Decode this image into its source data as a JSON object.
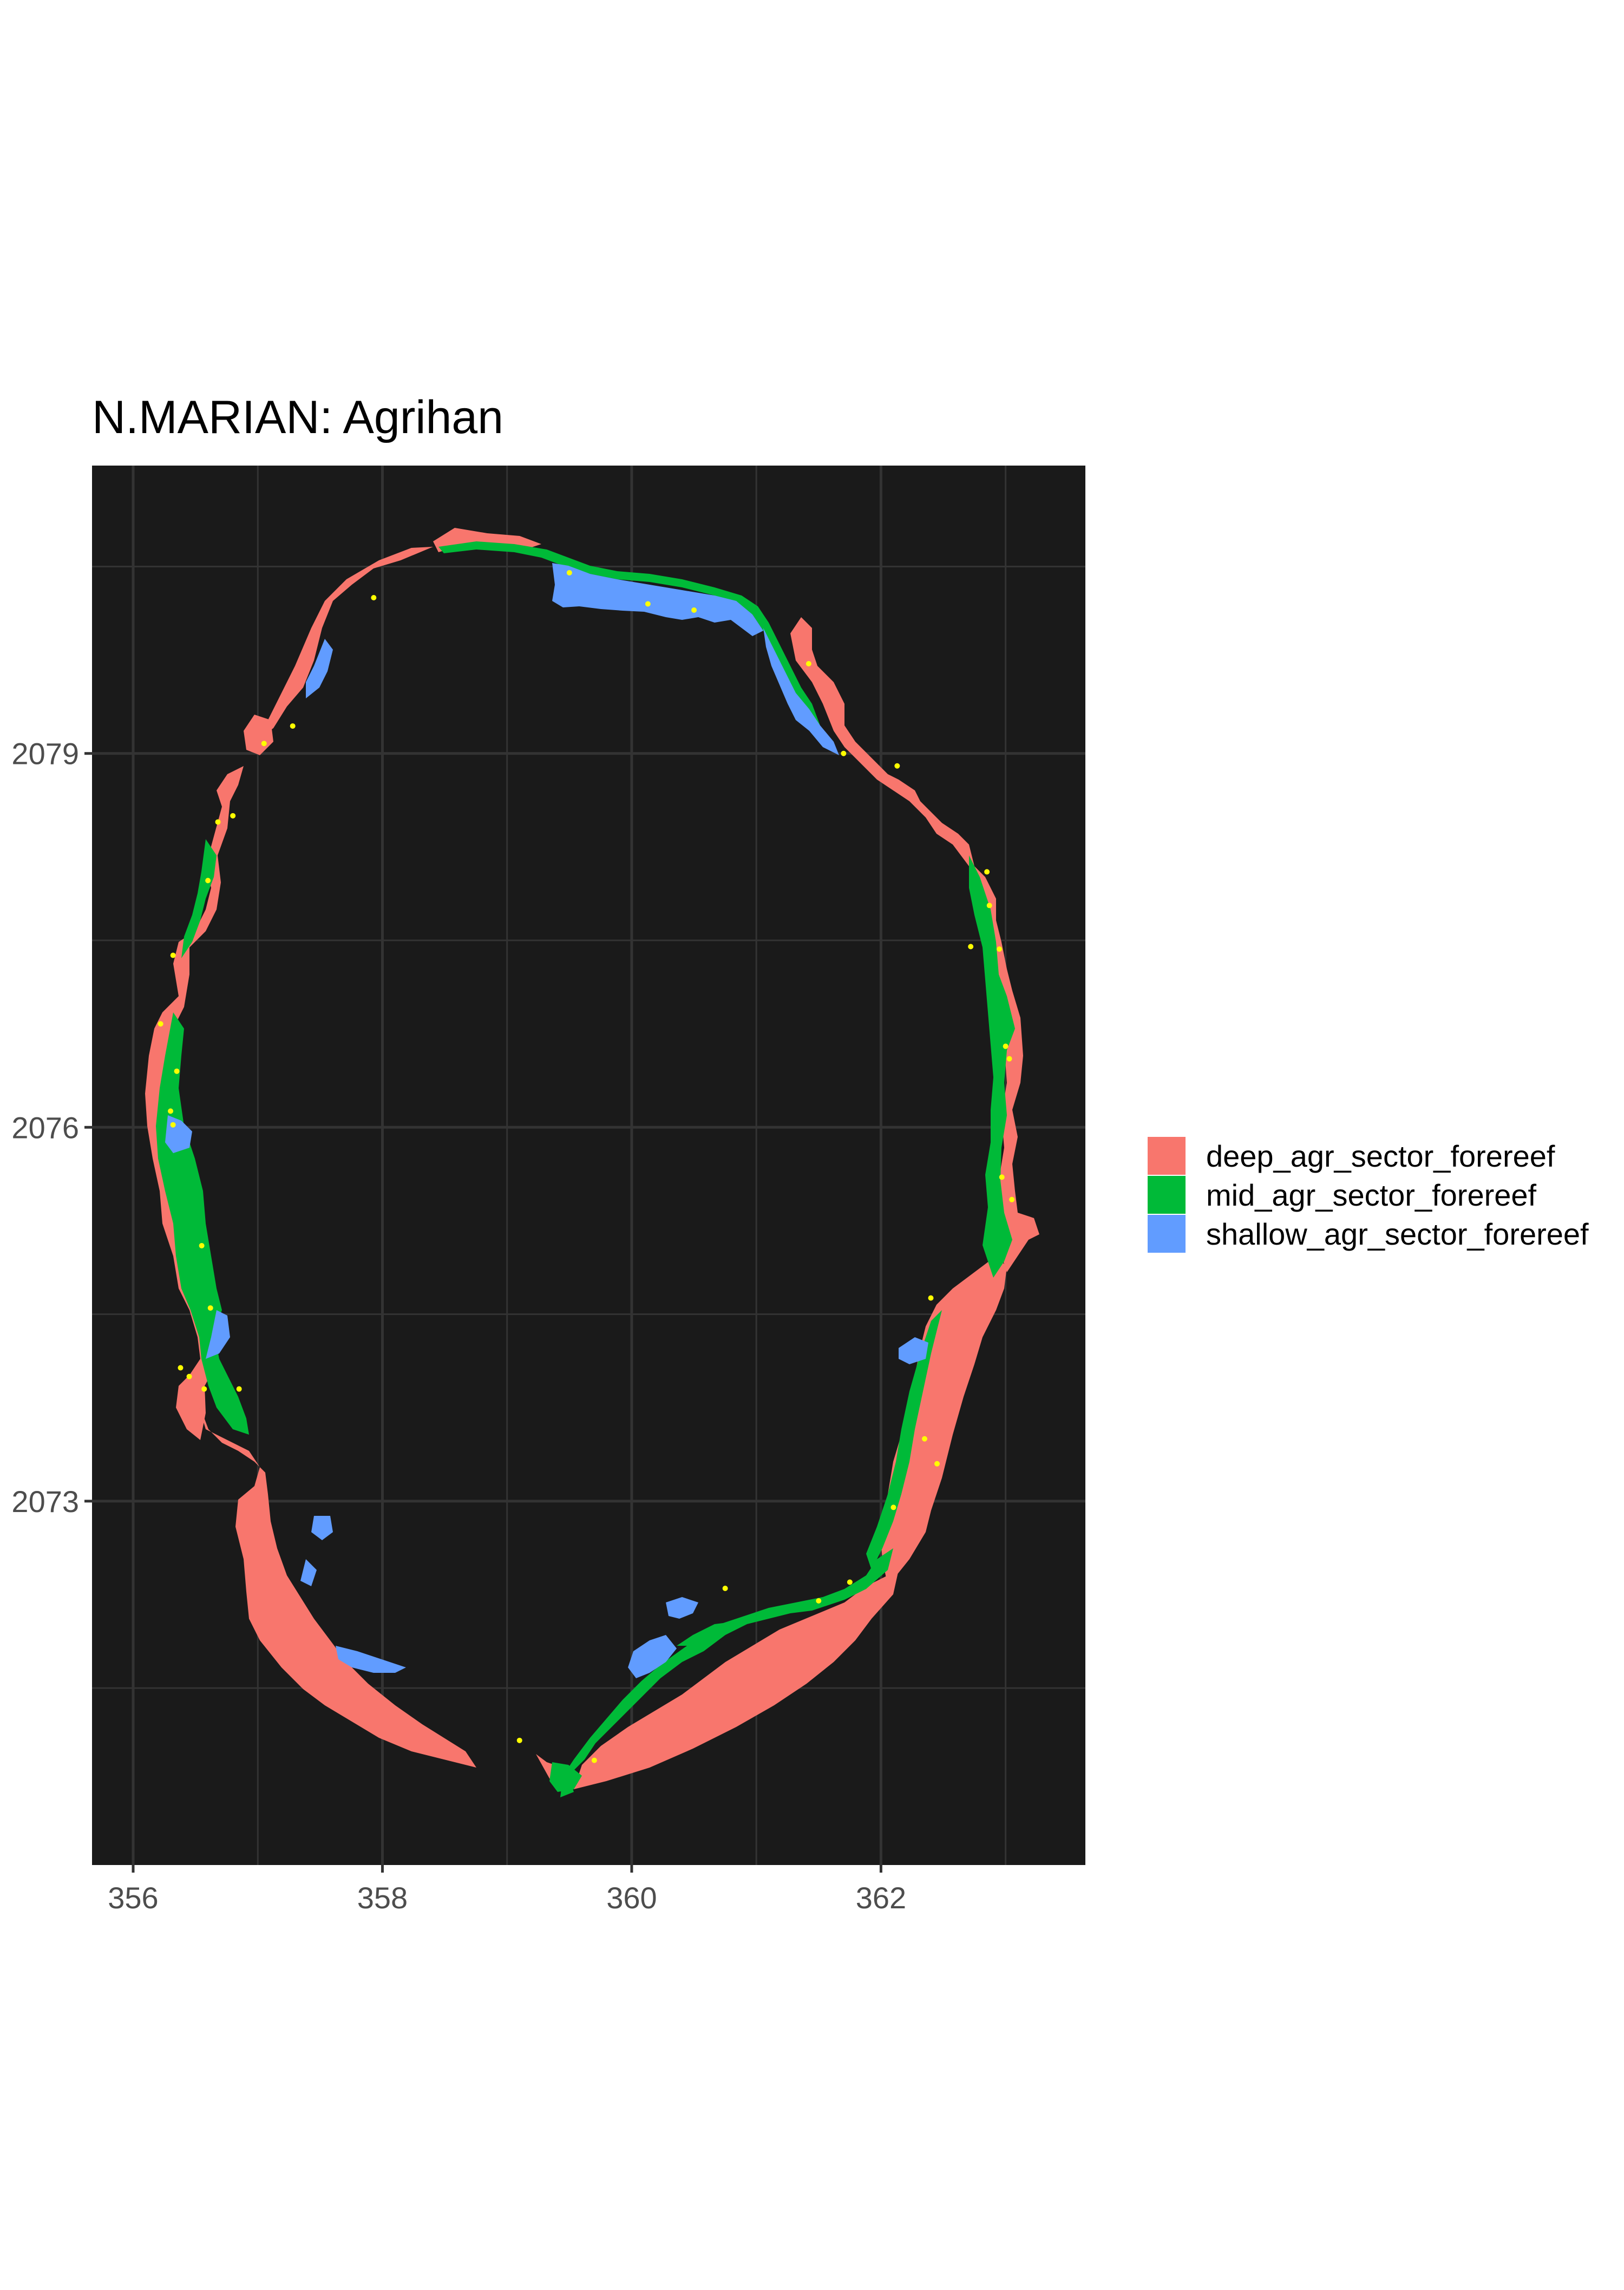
{
  "chart_data": {
    "type": "map",
    "title": "N.MARIAN: Agrihan",
    "xlabel": "",
    "ylabel": "",
    "x_ticks": [
      356,
      358,
      360,
      362
    ],
    "y_ticks": [
      2073,
      2076,
      2079
    ],
    "xlim": [
      355.67,
      363.64
    ],
    "ylim": [
      2070.08,
      2081.31
    ],
    "grid": true,
    "legend_position": "right",
    "background_color": "#1a1a1a",
    "grid_color": "#333333",
    "sites_color": "#ffff00",
    "categories": [
      {
        "name": "deep_agr_sector_forereef",
        "color": "#f8766d"
      },
      {
        "name": "mid_agr_sector_forereef",
        "color": "#00ba38"
      },
      {
        "name": "shallow_agr_sector_forereef",
        "color": "#619cff"
      }
    ],
    "survey_sites": [
      [
        359.5,
        2080.45
      ],
      [
        360.13,
        2080.2
      ],
      [
        360.5,
        2080.15
      ],
      [
        357.93,
        2080.25
      ],
      [
        357.28,
        2079.22
      ],
      [
        357.05,
        2079.08
      ],
      [
        361.42,
        2079.72
      ],
      [
        361.7,
        2079.0
      ],
      [
        362.13,
        2078.9
      ],
      [
        362.85,
        2078.05
      ],
      [
        362.87,
        2077.78
      ],
      [
        362.95,
        2077.43
      ],
      [
        362.72,
        2077.45
      ],
      [
        363.0,
        2076.65
      ],
      [
        363.03,
        2076.55
      ],
      [
        362.97,
        2075.6
      ],
      [
        363.05,
        2075.42
      ],
      [
        362.4,
        2074.63
      ],
      [
        362.35,
        2073.5
      ],
      [
        362.45,
        2073.3
      ],
      [
        362.1,
        2072.95
      ],
      [
        361.75,
        2072.35
      ],
      [
        361.5,
        2072.2
      ],
      [
        360.75,
        2072.3
      ],
      [
        359.7,
        2070.92
      ],
      [
        359.1,
        2071.08
      ],
      [
        356.22,
        2076.83
      ],
      [
        356.35,
        2076.45
      ],
      [
        356.3,
        2076.13
      ],
      [
        356.32,
        2076.02
      ],
      [
        356.55,
        2075.05
      ],
      [
        356.62,
        2074.55
      ],
      [
        356.38,
        2074.07
      ],
      [
        356.45,
        2074.0
      ],
      [
        356.57,
        2073.9
      ],
      [
        356.85,
        2073.9
      ],
      [
        356.68,
        2078.45
      ],
      [
        356.8,
        2078.5
      ],
      [
        356.6,
        2077.98
      ],
      [
        356.32,
        2077.38
      ]
    ]
  }
}
